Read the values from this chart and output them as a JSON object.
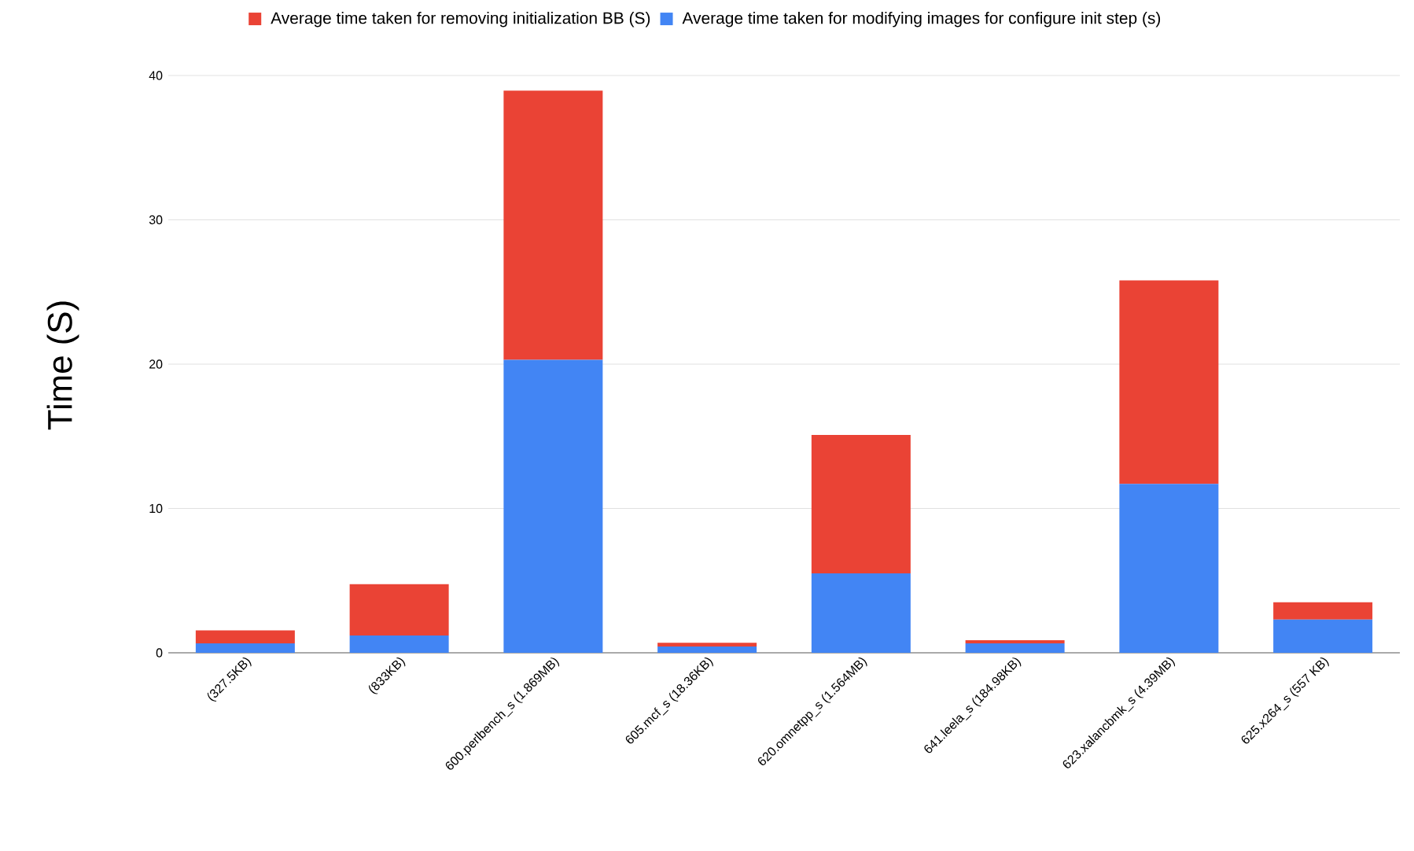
{
  "chart_data": {
    "type": "bar",
    "stacked": true,
    "ylabel": "Time (S)",
    "categories": [
      "(327.5KB)",
      "(833KB)",
      "600.perlbench_s (1.869MB)",
      "605.mcf_s (18.36KB)",
      "620.omnetpp_s (1.564MB)",
      "641.leela_s (184.98KB)",
      "623.xalancbmk_s (4.39MB)",
      "625.x264_s (557 KB)"
    ],
    "series": [
      {
        "name": "Average time taken for modifying images for configure init step (s)",
        "color": "#4285f4",
        "values": [
          0.65,
          1.2,
          20.3,
          0.44,
          5.5,
          0.65,
          11.7,
          2.3
        ]
      },
      {
        "name": "Average time taken for removing initialization BB (S)",
        "color": "#ea4335",
        "values": [
          0.9,
          3.55,
          18.65,
          0.25,
          9.6,
          0.22,
          14.1,
          1.2
        ]
      }
    ],
    "ylim": [
      0,
      40
    ],
    "yticks": [
      0,
      10,
      20,
      30,
      40
    ],
    "grid": "y",
    "legend": "top"
  }
}
